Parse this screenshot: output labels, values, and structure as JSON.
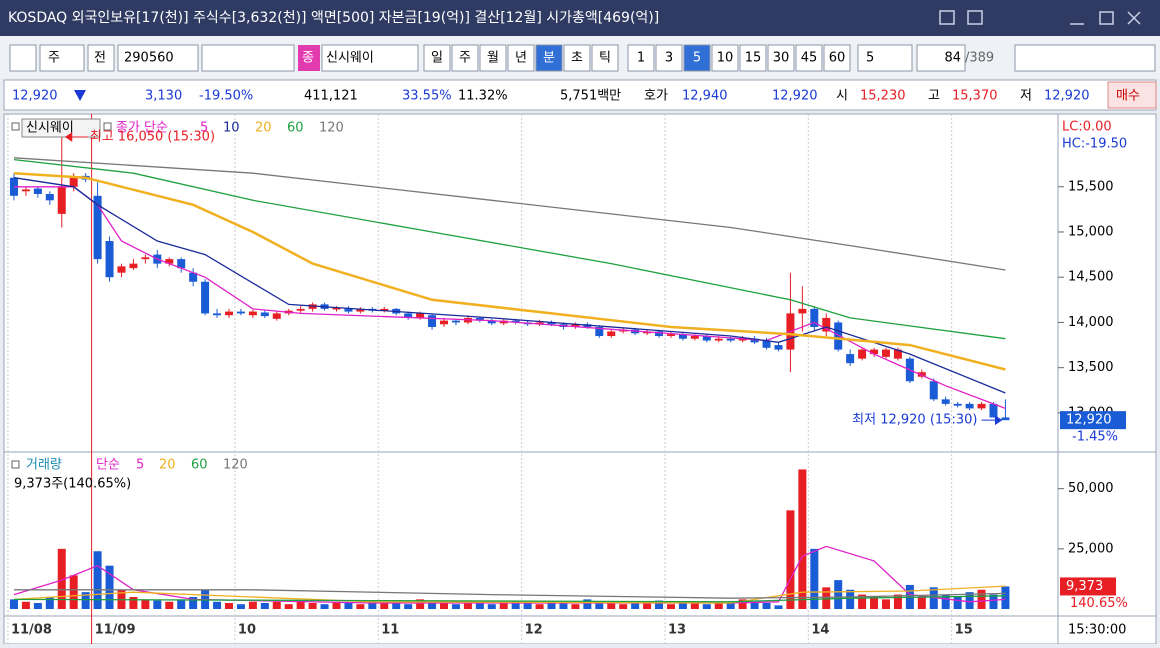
{
  "header": {
    "title": "KOSDAQ 외국인보유[17(천)] 주식수[3,632(천)] 액면[500] 자본금[19(억)] 결산[12월] 시가총액[469(억)]"
  },
  "toolbar": {
    "market_btn": "주",
    "type_btn": "전",
    "code": "290560",
    "badge": "종",
    "name": "신시웨이",
    "periods": [
      "일",
      "주",
      "월",
      "년",
      "분",
      "초",
      "틱"
    ],
    "selected_period": 4,
    "intervals": [
      "1",
      "3",
      "5",
      "10",
      "15",
      "30",
      "45",
      "60"
    ],
    "selected_interval": 2,
    "count_select": "5",
    "count": "84",
    "total": "/389"
  },
  "info": {
    "price": "12,920",
    "change": "3,130",
    "rate": "-19.50%",
    "volume": "411,121",
    "ratio1": "33.55%",
    "ratio2": "11.32%",
    "amount": "5,751백만",
    "ask_label": "호가",
    "ask": "12,940",
    "bid": "12,920",
    "open_label": "시",
    "open": "15,230",
    "high_label": "고",
    "high": "15,370",
    "low_label": "저",
    "low": "12,920",
    "buy": "매수"
  },
  "chart_data": [
    {
      "type": "candlestick",
      "name": "신시웨이",
      "ma_label": "종가 단순",
      "up_color": "#e81e25",
      "down_color": "#1a5bd6",
      "xlim": [
        -0.5,
        87.4
      ],
      "ylim": [
        12590,
        16260
      ],
      "yticks": [
        {
          "value": 13000,
          "label": "13,000"
        },
        {
          "value": 13500,
          "label": "13,500"
        },
        {
          "value": 14000,
          "label": "14,000"
        },
        {
          "value": 14500,
          "label": "14,500"
        },
        {
          "value": 15000,
          "label": "15,000"
        },
        {
          "value": 15500,
          "label": "15,500"
        }
      ],
      "open": [
        15600,
        15450,
        15480,
        15420,
        15200,
        15500,
        15620,
        15400,
        14900,
        14550,
        14600,
        14700,
        14750,
        14650,
        14700,
        14550,
        14450,
        14100,
        14080,
        14120,
        14080,
        14110,
        14040,
        14100,
        14130,
        14150,
        14200,
        14150,
        14160,
        14120,
        14150,
        14130,
        14150,
        14100,
        14050,
        14080,
        13980,
        14020,
        14000,
        14050,
        14020,
        13990,
        14020,
        14000,
        13980,
        14000,
        13980,
        13950,
        13980,
        13950,
        13850,
        13900,
        13920,
        13880,
        13900,
        13850,
        13870,
        13820,
        13850,
        13800,
        13820,
        13800,
        13820,
        13800,
        13750,
        13700,
        14100,
        14150,
        13900,
        14000,
        13650,
        13600,
        13650,
        13620,
        13600,
        13600,
        13400,
        13350,
        13150,
        13100,
        13100,
        13050,
        13100,
        12950
      ],
      "high": [
        15650,
        15500,
        15500,
        15450,
        16050,
        15650,
        15650,
        15550,
        14950,
        14650,
        14700,
        14750,
        14800,
        14720,
        14720,
        14600,
        14480,
        14150,
        14150,
        14150,
        14140,
        14130,
        14120,
        14150,
        14180,
        14220,
        14220,
        14180,
        14180,
        14170,
        14170,
        14170,
        14160,
        14120,
        14120,
        14100,
        14050,
        14040,
        14080,
        14060,
        14040,
        14040,
        14040,
        14020,
        14030,
        14020,
        14000,
        14000,
        14000,
        13970,
        13920,
        13940,
        13940,
        13920,
        13920,
        13900,
        13890,
        13870,
        13870,
        13850,
        13840,
        13850,
        13850,
        13830,
        13780,
        14550,
        14400,
        14180,
        14100,
        14020,
        13700,
        13720,
        13720,
        13720,
        13720,
        13620,
        13480,
        13380,
        13180,
        13120,
        13120,
        13120,
        13120,
        13150
      ],
      "low": [
        15350,
        15400,
        15380,
        15300,
        15050,
        15450,
        15550,
        14650,
        14450,
        14500,
        14580,
        14650,
        14600,
        14620,
        14550,
        14400,
        14080,
        14050,
        14050,
        14080,
        14050,
        14050,
        14020,
        14080,
        14100,
        14120,
        14130,
        14120,
        14100,
        14100,
        14110,
        14110,
        14080,
        14030,
        14030,
        13920,
        13950,
        13970,
        13980,
        14000,
        13970,
        13970,
        13980,
        13960,
        13960,
        13960,
        13920,
        13930,
        13930,
        13830,
        13830,
        13880,
        13860,
        13860,
        13830,
        13830,
        13800,
        13800,
        13780,
        13780,
        13780,
        13780,
        13760,
        13700,
        13680,
        13450,
        13900,
        13900,
        13850,
        13680,
        13520,
        13580,
        13620,
        13600,
        13580,
        13330,
        13380,
        13130,
        13080,
        13060,
        13030,
        13030,
        12950,
        12920
      ],
      "close": [
        15400,
        15470,
        15420,
        15350,
        15500,
        15600,
        15580,
        14700,
        14500,
        14620,
        14650,
        14720,
        14650,
        14700,
        14600,
        14450,
        14100,
        14080,
        14120,
        14100,
        14120,
        14070,
        14100,
        14130,
        14150,
        14200,
        14150,
        14160,
        14120,
        14150,
        14130,
        14150,
        14100,
        14050,
        14100,
        13950,
        14020,
        14000,
        14050,
        14020,
        13990,
        14020,
        14000,
        13980,
        14000,
        13980,
        13950,
        13980,
        13950,
        13850,
        13900,
        13920,
        13880,
        13900,
        13850,
        13870,
        13820,
        13850,
        13800,
        13820,
        13800,
        13820,
        13780,
        13720,
        13700,
        14100,
        14150,
        13950,
        14050,
        13700,
        13550,
        13700,
        13700,
        13700,
        13700,
        13350,
        13450,
        13150,
        13100,
        13080,
        13050,
        13100,
        12950,
        12920
      ],
      "series": [
        {
          "name": "5",
          "color": "#e020c8",
          "x": [
            0,
            5,
            7,
            9,
            12,
            16,
            20,
            24,
            40,
            63,
            67,
            72,
            78,
            83
          ],
          "values": [
            15500,
            15500,
            15300,
            14900,
            14700,
            14500,
            14150,
            14100,
            14020,
            13800,
            14000,
            13650,
            13300,
            13050
          ]
        },
        {
          "name": "10",
          "color": "#1a2a9a",
          "x": [
            0,
            5,
            7,
            12,
            16,
            23,
            40,
            60,
            64,
            68,
            75,
            83
          ],
          "values": [
            15600,
            15500,
            15300,
            14900,
            14750,
            14200,
            14050,
            13850,
            13780,
            13950,
            13650,
            13220
          ]
        },
        {
          "name": "20",
          "color": "#f0b020",
          "x": [
            0,
            6,
            15,
            20,
            25,
            35,
            45,
            55,
            65,
            75,
            83
          ],
          "values": [
            15650,
            15600,
            15300,
            15000,
            14650,
            14250,
            14100,
            13950,
            13870,
            13750,
            13480
          ]
        },
        {
          "name": "60",
          "color": "#1fa040",
          "x": [
            0,
            10,
            20,
            35,
            50,
            65,
            70,
            83
          ],
          "values": [
            15800,
            15650,
            15350,
            15000,
            14650,
            14250,
            14050,
            13820
          ]
        },
        {
          "name": "120",
          "color": "#777777",
          "x": [
            0,
            20,
            40,
            60,
            70,
            83
          ],
          "values": [
            15820,
            15650,
            15350,
            15050,
            14850,
            14580
          ]
        }
      ],
      "annotations": [
        {
          "text": "최고 16,050 (15:30)",
          "x": 4,
          "y": 16050,
          "color": "#e81e25"
        },
        {
          "text": "최저 12,920 (15:30)",
          "x": 83,
          "y": 12920,
          "color": "#1a3ad6"
        }
      ],
      "lc": "LC:0.00",
      "hc": "HC:-19.50",
      "last": {
        "value": 12920,
        "label": "12,920"
      },
      "change_label": "-1.45%"
    },
    {
      "type": "bar",
      "name": "거래량",
      "ma_label": "단순",
      "xlim": [
        -0.5,
        87.4
      ],
      "ylim": [
        0,
        64000
      ],
      "yticks": [
        {
          "value": 25000,
          "label": "25,000"
        },
        {
          "value": 50000,
          "label": "50,000"
        }
      ],
      "xticks": [
        {
          "value": 0,
          "label": "11/08"
        },
        {
          "value": 7,
          "label": "11/09"
        },
        {
          "value": 19,
          "label": "10"
        },
        {
          "value": 31,
          "label": "11"
        },
        {
          "value": 43,
          "label": "12"
        },
        {
          "value": 55,
          "label": "13"
        },
        {
          "value": 67,
          "label": "14"
        },
        {
          "value": 79,
          "label": "15"
        }
      ],
      "time_label": "15:30:00",
      "summary": "9,373주(140.65%)",
      "values": [
        4000,
        3000,
        2500,
        5000,
        25000,
        14000,
        7000,
        24000,
        18000,
        8000,
        5000,
        4000,
        3500,
        3000,
        4000,
        5000,
        8000,
        3000,
        2500,
        2000,
        3000,
        2500,
        3000,
        2000,
        3500,
        2500,
        2000,
        3000,
        2500,
        2000,
        3500,
        3000,
        2500,
        2000,
        4000,
        3000,
        2500,
        2000,
        3000,
        2500,
        2000,
        3000,
        3500,
        2500,
        2000,
        3000,
        2500,
        2000,
        4000,
        3000,
        2500,
        2000,
        3000,
        2500,
        3500,
        2000,
        2500,
        3000,
        2000,
        2500,
        3000,
        4000,
        3000,
        2500,
        1500,
        41000,
        58000,
        25000,
        9000,
        12000,
        8000,
        6000,
        5000,
        4000,
        6000,
        10000,
        5000,
        9000,
        6000,
        5000,
        7000,
        8000,
        6000,
        9373
      ],
      "series": [
        {
          "name": "5",
          "color": "#e020c8",
          "x": [
            0,
            4,
            7,
            10,
            15,
            30,
            60,
            64,
            66,
            68,
            72,
            75,
            80,
            83
          ],
          "values": [
            6000,
            12000,
            18000,
            8000,
            4000,
            2500,
            2500,
            3000,
            22000,
            26000,
            20000,
            6000,
            3000,
            4000
          ]
        },
        {
          "name": "20",
          "color": "#f0b020",
          "x": [
            0,
            10,
            20,
            30,
            60,
            66,
            75,
            83
          ],
          "values": [
            4000,
            7000,
            5000,
            3000,
            2500,
            7000,
            7500,
            9500
          ]
        },
        {
          "name": "60",
          "color": "#1fa040",
          "x": [
            0,
            30,
            60,
            70,
            83
          ],
          "values": [
            4000,
            3500,
            3000,
            4500,
            5500
          ]
        },
        {
          "name": "120",
          "color": "#777777",
          "x": [
            0,
            20,
            40,
            60,
            70,
            83
          ],
          "values": [
            8000,
            8000,
            6000,
            4500,
            5000,
            6500
          ]
        }
      ],
      "last": {
        "value": 9373,
        "label": "9,373"
      },
      "ratio_label": "140.65%"
    }
  ]
}
